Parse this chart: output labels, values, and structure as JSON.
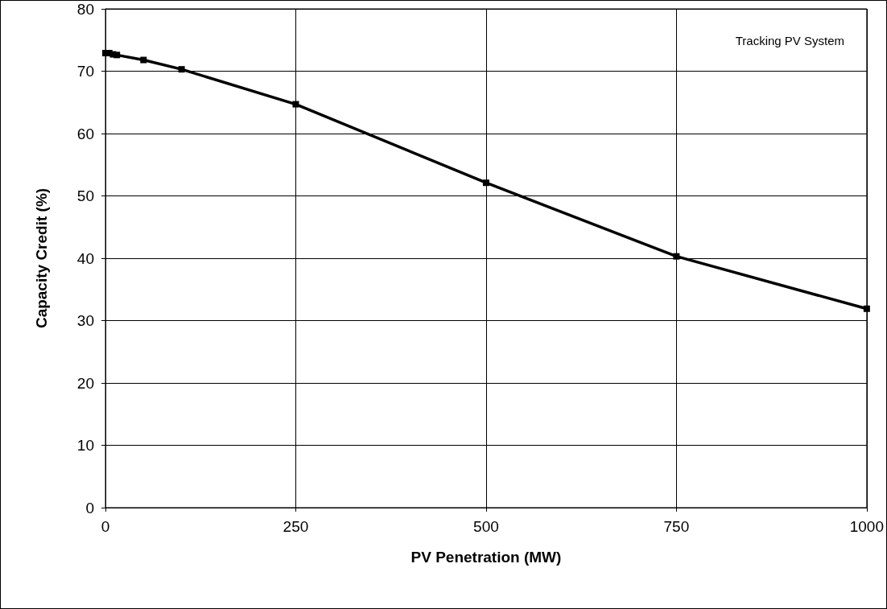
{
  "chart_data": {
    "type": "line",
    "xlabel": "PV Penetration (MW)",
    "ylabel": "Capacity Credit (%)",
    "annotations": [
      "Tracking PV System"
    ],
    "x": [
      0,
      5,
      10,
      15,
      50,
      100,
      250,
      500,
      750,
      1000
    ],
    "series": [
      {
        "color": "#000000",
        "values": [
          72.9,
          72.9,
          72.7,
          72.6,
          71.8,
          70.3,
          64.7,
          52.1,
          40.3,
          31.9
        ]
      }
    ],
    "xlim": [
      0,
      1000
    ],
    "xticks": [
      0,
      250,
      500,
      750,
      1000
    ],
    "ylim": [
      0,
      80
    ],
    "yticks": [
      0,
      10,
      20,
      30,
      40,
      50,
      60,
      70,
      80
    ],
    "grid": true,
    "marker": "square",
    "line_style": "solid"
  }
}
